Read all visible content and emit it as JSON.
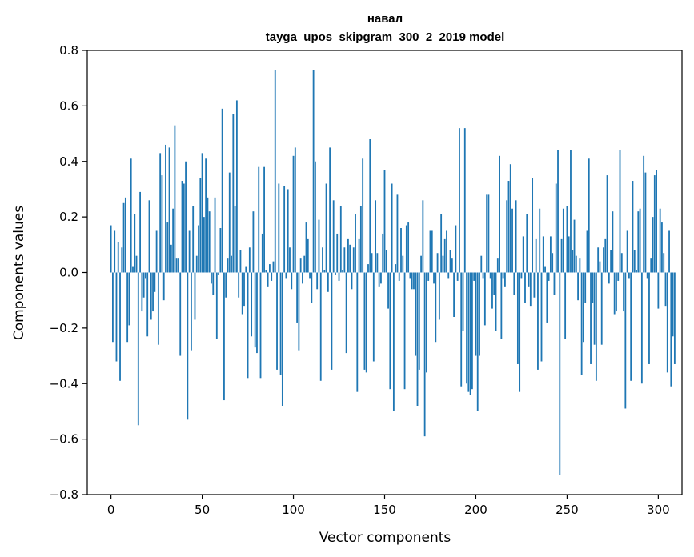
{
  "chart_data": {
    "type": "bar",
    "title": "навал",
    "subtitle": "tayga_upos_skipgram_300_2_2019 model",
    "xlabel": "Vector components",
    "ylabel": "Components values",
    "xlim": [
      -13,
      313
    ],
    "ylim": [
      -0.8,
      0.8
    ],
    "xticks": [
      0,
      50,
      100,
      150,
      200,
      250,
      300
    ],
    "yticks": [
      -0.8,
      -0.6,
      -0.4,
      -0.2,
      0.0,
      0.2,
      0.4,
      0.6,
      0.8
    ],
    "xtick_labels": [
      "0",
      "50",
      "100",
      "150",
      "200",
      "250",
      "300"
    ],
    "ytick_labels": [
      "−0.8",
      "−0.6",
      "−0.4",
      "−0.2",
      "0.0",
      "0.2",
      "0.4",
      "0.6",
      "0.8"
    ],
    "bar_width": 0.8,
    "color": "#1f77b4",
    "values": [
      0.17,
      -0.25,
      0.15,
      -0.32,
      0.11,
      -0.39,
      0.09,
      0.25,
      0.27,
      -0.25,
      -0.19,
      0.41,
      0.02,
      0.21,
      0.06,
      -0.55,
      0.29,
      -0.14,
      -0.09,
      -0.02,
      -0.23,
      0.26,
      -0.17,
      -0.14,
      -0.07,
      0.15,
      -0.26,
      0.43,
      0.35,
      -0.1,
      0.46,
      0.18,
      0.45,
      0.1,
      0.23,
      0.53,
      0.05,
      0.05,
      -0.3,
      0.33,
      0.32,
      0.4,
      -0.53,
      0.15,
      -0.28,
      0.24,
      -0.17,
      0.06,
      0.17,
      0.34,
      0.43,
      0.2,
      0.41,
      0.27,
      0.22,
      -0.04,
      -0.08,
      0.27,
      -0.24,
      -0.01,
      0.16,
      0.59,
      -0.46,
      -0.09,
      0.05,
      0.36,
      0.06,
      0.57,
      0.24,
      0.62,
      -0.09,
      0.08,
      -0.15,
      -0.12,
      0.02,
      -0.38,
      0.09,
      -0.23,
      0.22,
      -0.27,
      -0.29,
      0.38,
      -0.38,
      0.14,
      0.38,
      0.01,
      -0.05,
      0.03,
      -0.03,
      0.04,
      0.73,
      -0.35,
      0.32,
      -0.37,
      -0.48,
      0.31,
      -0.02,
      0.3,
      0.09,
      -0.06,
      0.42,
      0.45,
      -0.18,
      -0.28,
      0.05,
      -0.04,
      0.06,
      0.18,
      0.12,
      -0.02,
      -0.11,
      0.73,
      0.4,
      -0.06,
      0.19,
      -0.39,
      0.09,
      0.01,
      0.32,
      -0.07,
      0.45,
      -0.35,
      0.26,
      -0.01,
      0.14,
      -0.03,
      0.24,
      0.01,
      0.09,
      -0.29,
      0.12,
      0.1,
      -0.06,
      0.09,
      0.21,
      -0.43,
      0.12,
      0.24,
      0.41,
      -0.35,
      -0.36,
      0.03,
      0.48,
      0.07,
      -0.32,
      0.26,
      0.07,
      -0.05,
      -0.04,
      0.14,
      0.37,
      0.08,
      -0.13,
      -0.42,
      0.32,
      -0.5,
      0.03,
      0.28,
      -0.03,
      0.16,
      0.06,
      -0.42,
      0.17,
      0.18,
      -0.02,
      -0.06,
      -0.06,
      -0.3,
      -0.48,
      -0.35,
      0.06,
      0.26,
      -0.59,
      -0.36,
      -0.03,
      0.15,
      0.15,
      -0.04,
      -0.25,
      0.07,
      -0.17,
      0.21,
      0.06,
      0.12,
      0.15,
      -0.02,
      0.08,
      0.05,
      -0.16,
      0.17,
      -0.03,
      0.52,
      -0.41,
      -0.21,
      0.52,
      -0.4,
      -0.43,
      -0.44,
      -0.42,
      -0.03,
      -0.3,
      -0.5,
      -0.3,
      0.06,
      -0.02,
      -0.19,
      0.28,
      0.28,
      -0.02,
      -0.13,
      -0.08,
      -0.21,
      0.05,
      0.42,
      -0.24,
      -0.02,
      -0.05,
      0.26,
      0.33,
      0.39,
      0.23,
      -0.08,
      0.26,
      -0.33,
      -0.43,
      -0.02,
      0.13,
      -0.11,
      0.21,
      -0.05,
      -0.12,
      0.34,
      -0.09,
      0.12,
      -0.35,
      0.23,
      -0.32,
      0.13,
      0.02,
      -0.18,
      -0.03,
      0.13,
      0.07,
      -0.08,
      0.32,
      0.44,
      -0.73,
      0.12,
      0.23,
      -0.24,
      0.24,
      0.13,
      0.44,
      0.08,
      0.19,
      0.06,
      -0.1,
      0.05,
      -0.37,
      -0.25,
      -0.11,
      0.15,
      0.41,
      -0.33,
      -0.11,
      -0.26,
      -0.39,
      0.09,
      0.04,
      -0.26,
      0.09,
      0.12,
      0.35,
      -0.04,
      0.08,
      0.22,
      -0.15,
      -0.14,
      -0.03,
      0.44,
      0.07,
      -0.14,
      -0.49,
      0.15,
      -0.02,
      -0.39,
      0.33,
      0.08,
      0.01,
      0.22,
      0.23,
      -0.4,
      0.42,
      0.36,
      -0.02,
      -0.33,
      0.05,
      0.2,
      0.35,
      0.37,
      -0.13,
      0.23,
      0.18,
      0.07,
      -0.12,
      -0.36,
      0.15,
      -0.41,
      -0.23,
      -0.33
    ]
  }
}
